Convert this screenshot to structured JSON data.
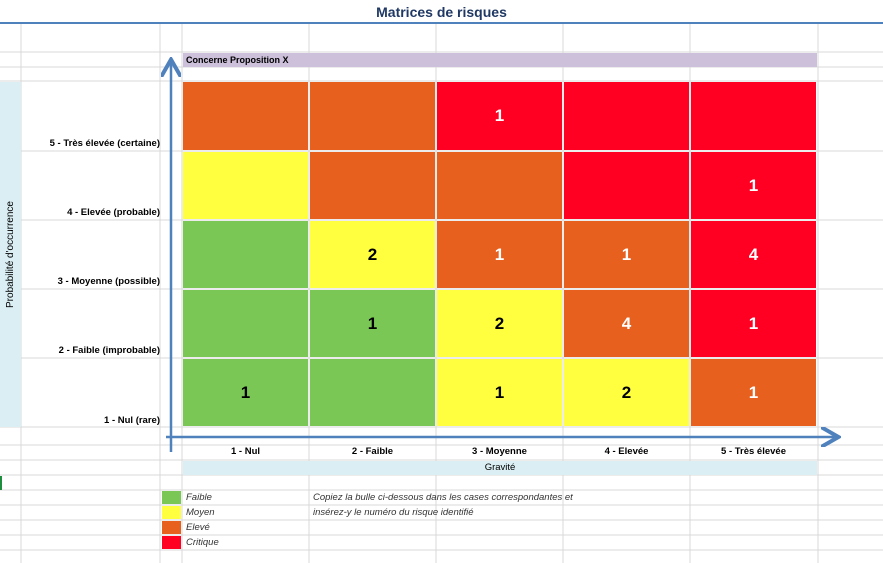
{
  "title": "Matrices de risques",
  "concerne": "Concerne Proposition X",
  "y_axis_label": "Probabilité d'occurrence",
  "x_axis_label": "Gravité",
  "rows": [
    "5 - Très élevée (certaine)",
    "4 - Elevée (probable)",
    "3 - Moyenne (possible)",
    "2 - Faible (improbable)",
    "1 - Nul (rare)"
  ],
  "columns": [
    "1 - Nul",
    "2 - Faible",
    "3 - Moyenne",
    "4 - Elevée",
    "5 - Très élevée"
  ],
  "colors": {
    "faible": "#7AC756",
    "moyen": "#FFFF3F",
    "eleve": "#E8601E",
    "critique": "#FF0022",
    "axis": "#4F81BD",
    "title": "#1F3864"
  },
  "matrix": [
    [
      {
        "level": "eleve",
        "count": ""
      },
      {
        "level": "eleve",
        "count": ""
      },
      {
        "level": "critique",
        "count": "1"
      },
      {
        "level": "critique",
        "count": ""
      },
      {
        "level": "critique",
        "count": ""
      }
    ],
    [
      {
        "level": "moyen",
        "count": ""
      },
      {
        "level": "eleve",
        "count": ""
      },
      {
        "level": "eleve",
        "count": ""
      },
      {
        "level": "critique",
        "count": ""
      },
      {
        "level": "critique",
        "count": "1"
      }
    ],
    [
      {
        "level": "faible",
        "count": ""
      },
      {
        "level": "moyen",
        "count": "2"
      },
      {
        "level": "eleve",
        "count": "1"
      },
      {
        "level": "eleve",
        "count": "1"
      },
      {
        "level": "critique",
        "count": "4"
      }
    ],
    [
      {
        "level": "faible",
        "count": ""
      },
      {
        "level": "faible",
        "count": "1"
      },
      {
        "level": "moyen",
        "count": "2"
      },
      {
        "level": "eleve",
        "count": "4"
      },
      {
        "level": "critique",
        "count": "1"
      }
    ],
    [
      {
        "level": "faible",
        "count": "1"
      },
      {
        "level": "faible",
        "count": ""
      },
      {
        "level": "moyen",
        "count": "1"
      },
      {
        "level": "moyen",
        "count": "2"
      },
      {
        "level": "eleve",
        "count": "1"
      }
    ]
  ],
  "legend": [
    {
      "level": "faible",
      "label": "Faible"
    },
    {
      "level": "moyen",
      "label": "Moyen"
    },
    {
      "level": "eleve",
      "label": "Elevé"
    },
    {
      "level": "critique",
      "label": "Critique"
    }
  ],
  "note": [
    "Copiez la bulle ci-dessous dans les cases correspondantes et",
    "insérez-y le numéro du risque identifié"
  ]
}
